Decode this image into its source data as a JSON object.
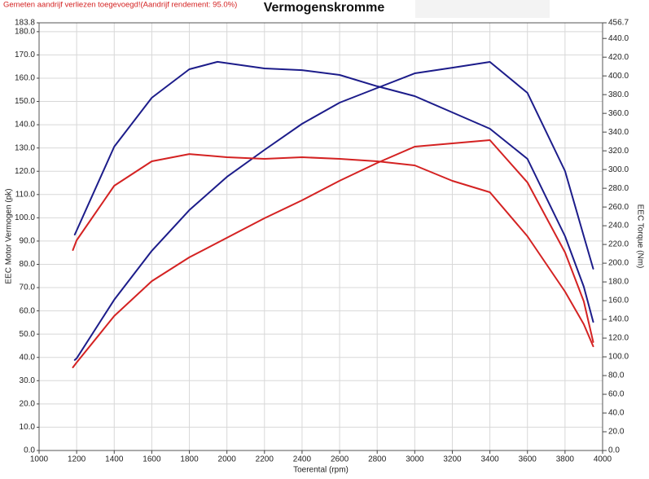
{
  "chart_data": {
    "type": "line",
    "title": "Vermogenskromme",
    "note": "Gemeten aandrijf verliezen toegevoegd!(Aandrijf rendement: 95.0%)",
    "x_label": "Toerental (rpm)",
    "y_label": "EEC Motor Vermogen (pk)",
    "y2_label": "EEC Torque (Nm)",
    "grid": true,
    "xlim": [
      1000,
      4000
    ],
    "xticks": [
      1000,
      1200,
      1400,
      1600,
      1800,
      2000,
      2200,
      2400,
      2600,
      2800,
      3000,
      3200,
      3400,
      3600,
      3800,
      4000
    ],
    "ylim": [
      0,
      183.8
    ],
    "yticks": [
      {
        "value": 0,
        "label": "0.0"
      },
      {
        "value": 10,
        "label": "10.0"
      },
      {
        "value": 20,
        "label": "20.0"
      },
      {
        "value": 30,
        "label": "30.0"
      },
      {
        "value": 40,
        "label": "40.0"
      },
      {
        "value": 50,
        "label": "50.0"
      },
      {
        "value": 60,
        "label": "60.0"
      },
      {
        "value": 70,
        "label": "70.0"
      },
      {
        "value": 80,
        "label": "80.0"
      },
      {
        "value": 90,
        "label": "90.0"
      },
      {
        "value": 100,
        "label": "100.0"
      },
      {
        "value": 110,
        "label": "110.0"
      },
      {
        "value": 120,
        "label": "120.0"
      },
      {
        "value": 130,
        "label": "130.0"
      },
      {
        "value": 140,
        "label": "140.0"
      },
      {
        "value": 150,
        "label": "150.0"
      },
      {
        "value": 160,
        "label": "160.0"
      },
      {
        "value": 170,
        "label": "170.0"
      },
      {
        "value": 180,
        "label": "180.0"
      },
      183.8
    ],
    "y2lim": [
      0,
      456.7
    ],
    "y2ticks": [
      {
        "value": 0,
        "label": "0.0"
      },
      {
        "value": 20,
        "label": "20.0"
      },
      {
        "value": 40,
        "label": "40.0"
      },
      {
        "value": 60,
        "label": "60.0"
      },
      {
        "value": 80,
        "label": "80.0"
      },
      {
        "value": 100,
        "label": "100.0"
      },
      {
        "value": 120,
        "label": "120.0"
      },
      {
        "value": 140,
        "label": "140.0"
      },
      {
        "value": 160,
        "label": "160.0"
      },
      {
        "value": 180,
        "label": "180.0"
      },
      {
        "value": 200,
        "label": "200.0"
      },
      {
        "value": 220,
        "label": "220.0"
      },
      {
        "value": 240,
        "label": "240.0"
      },
      {
        "value": 260,
        "label": "260.0"
      },
      {
        "value": 280,
        "label": "280.0"
      },
      {
        "value": 300,
        "label": "300.0"
      },
      {
        "value": 320,
        "label": "320.0"
      },
      {
        "value": 340,
        "label": "340.0"
      },
      {
        "value": 360,
        "label": "360.0"
      },
      {
        "value": 380,
        "label": "380.0"
      },
      {
        "value": 400,
        "label": "400.0"
      },
      {
        "value": 420,
        "label": "420.0"
      },
      {
        "value": 440,
        "label": "440.0"
      },
      456.7
    ],
    "series": [
      {
        "color": "#1c1c8a",
        "axis": "y",
        "x": [
          1190,
          1200,
          1400,
          1600,
          1800,
          2000,
          2200,
          2400,
          2600,
          2800,
          3000,
          3200,
          3400,
          3600,
          3800,
          3900,
          3950
        ],
        "values": [
          38.9,
          39.6,
          64.8,
          85.8,
          103.3,
          117.6,
          129.2,
          140.4,
          149.5,
          155.8,
          162.1,
          164.5,
          167.0,
          153.7,
          120.1,
          92.1,
          78.1
        ]
      },
      {
        "color": "#1c1c8a",
        "axis": "y2",
        "x": [
          1190,
          1200,
          1400,
          1600,
          1800,
          1950,
          2200,
          2400,
          2600,
          2800,
          3000,
          3200,
          3400,
          3600,
          3800,
          3900,
          3950
        ],
        "values": [
          230.5,
          234.9,
          324.5,
          376.7,
          407.1,
          415.0,
          408.0,
          406.2,
          401.0,
          388.9,
          378.4,
          361.0,
          343.6,
          311.4,
          228.8,
          174.9,
          137.4
        ]
      },
      {
        "color": "#d42222",
        "axis": "y",
        "x": [
          1180,
          1200,
          1400,
          1600,
          1800,
          2000,
          2200,
          2400,
          2600,
          2800,
          3000,
          3200,
          3400,
          3600,
          3800,
          3900,
          3950
        ],
        "values": [
          35.7,
          37.8,
          57.8,
          72.8,
          83.0,
          91.4,
          99.8,
          107.5,
          115.9,
          123.6,
          130.6,
          132.0,
          133.4,
          115.2,
          85.1,
          64.1,
          46.6
        ]
      },
      {
        "color": "#d42222",
        "axis": "y2",
        "x": [
          1180,
          1200,
          1400,
          1600,
          1800,
          2000,
          2200,
          2400,
          2600,
          2800,
          3000,
          3200,
          3400,
          3600,
          3800,
          3900,
          3950
        ],
        "values": [
          214.0,
          224.4,
          282.7,
          308.8,
          316.6,
          313.2,
          311.4,
          313.2,
          311.4,
          308.8,
          304.5,
          287.9,
          275.8,
          228.8,
          169.6,
          134.8,
          111.3
        ]
      }
    ]
  }
}
